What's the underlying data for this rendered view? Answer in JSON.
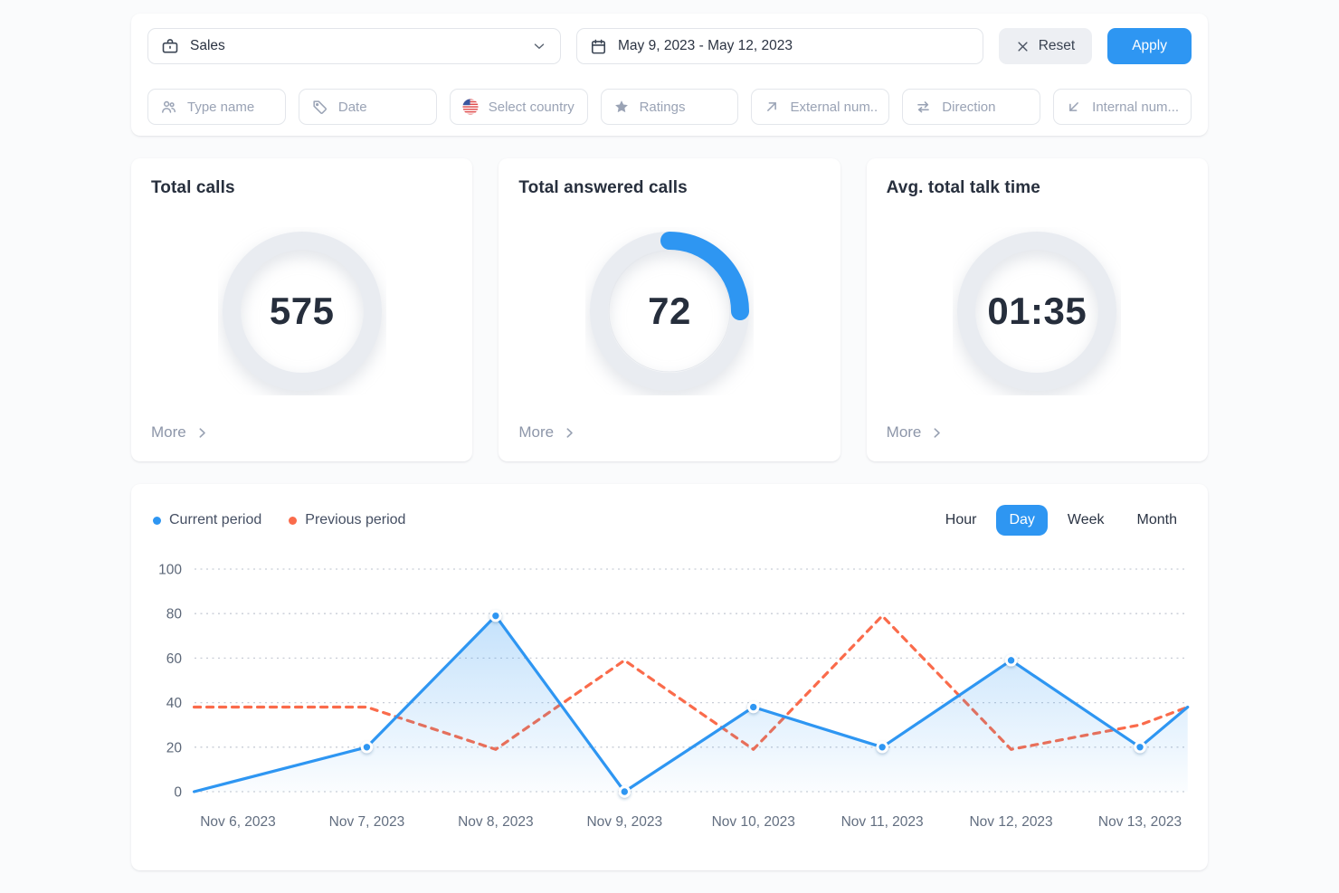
{
  "theme": {
    "accent_blue": "#2e96f2",
    "accent_orange": "#fa6b4b",
    "ring_gray": "#e9ecf1"
  },
  "topbar": {
    "department_select": {
      "value": "Sales",
      "icon": "briefcase-icon"
    },
    "date_range": {
      "value": "May 9, 2023 - May 12, 2023",
      "icon": "calendar-icon"
    },
    "reset_label": "Reset",
    "apply_label": "Apply",
    "filters": [
      {
        "label": "Type name",
        "icon": "users-icon"
      },
      {
        "label": "Date",
        "icon": "tag-icon"
      },
      {
        "label": "Select country",
        "icon": "us-flag-icon"
      },
      {
        "label": "Ratings",
        "icon": "star-icon"
      },
      {
        "label": "External num..",
        "icon": "arrow-up-right-icon"
      },
      {
        "label": "Direction",
        "icon": "arrows-swap-icon"
      },
      {
        "label": "Internal num...",
        "icon": "arrow-down-left-icon"
      }
    ]
  },
  "kpis": [
    {
      "title": "Total calls",
      "value": "575",
      "more_label": "More",
      "ring": "full"
    },
    {
      "title": "Total answered calls",
      "value": "72",
      "more_label": "More",
      "ring": "progress",
      "progress": 0.25
    },
    {
      "title": "Avg. total talk time",
      "value": "01:35",
      "more_label": "More",
      "ring": "full"
    }
  ],
  "chart": {
    "tabs": [
      {
        "label": "Hour",
        "active": false
      },
      {
        "label": "Day",
        "active": true
      },
      {
        "label": "Week",
        "active": false
      },
      {
        "label": "Month",
        "active": false
      }
    ]
  },
  "chart_data": {
    "type": "line",
    "title": "",
    "x_labels": [
      "Nov 6, 2023",
      "Nov 7, 2023",
      "Nov 8, 2023",
      "Nov 9, 2023",
      "Nov 10, 2023",
      "Nov 11, 2023",
      "Nov 12, 2023",
      "Nov 13, 2023"
    ],
    "y_ticks": [
      0,
      20,
      40,
      60,
      80,
      100
    ],
    "ylim": [
      0,
      100
    ],
    "grid": "horizontal dotted",
    "legend_position": "top-left",
    "series": [
      {
        "name": "Current period",
        "color": "#2e96f2",
        "style": "solid",
        "area_fill": true,
        "markers": true,
        "points": [
          {
            "x": -0.34,
            "y": 0
          },
          {
            "x": 1,
            "y": 20,
            "m": 1
          },
          {
            "x": 2,
            "y": 79,
            "m": 1
          },
          {
            "x": 3,
            "y": 0,
            "m": 1
          },
          {
            "x": 4,
            "y": 38,
            "m": 1
          },
          {
            "x": 5,
            "y": 20,
            "m": 1
          },
          {
            "x": 6,
            "y": 59,
            "m": 1
          },
          {
            "x": 7,
            "y": 20,
            "m": 1
          },
          {
            "x": 7.37,
            "y": 38
          }
        ]
      },
      {
        "name": "Previous period",
        "color": "#fa6b4b",
        "style": "dashed",
        "area_fill": false,
        "markers": false,
        "points": [
          {
            "x": -0.34,
            "y": 38
          },
          {
            "x": 1,
            "y": 38
          },
          {
            "x": 2,
            "y": 19
          },
          {
            "x": 3,
            "y": 59
          },
          {
            "x": 4,
            "y": 19
          },
          {
            "x": 5,
            "y": 79
          },
          {
            "x": 6,
            "y": 19
          },
          {
            "x": 7,
            "y": 30
          },
          {
            "x": 7.37,
            "y": 38
          }
        ]
      }
    ]
  }
}
